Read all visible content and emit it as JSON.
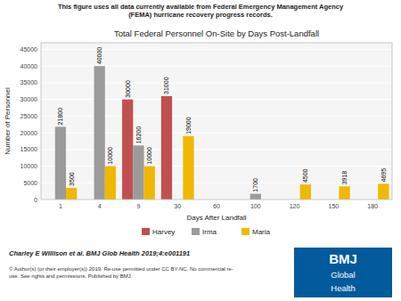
{
  "chart_data": {
    "type": "bar",
    "title": "Total Federal Personnel On-Site by Days Post-Landfall",
    "subtitle": "This figure uses all data currently available from Federal Emergency Management Agency\n(FEMA) hurricane recovery progress records.",
    "x_label": "Days After Landfall",
    "y_label": "Number of Personnel",
    "categories": [
      "1",
      "4",
      "9",
      "30",
      "60",
      "100",
      "120",
      "150",
      "180"
    ],
    "series": [
      {
        "name": "Harvey",
        "color": "#C0504D",
        "values": [
          0,
          0,
          30000,
          31000,
          0,
          0,
          0,
          0,
          0
        ]
      },
      {
        "name": "Irma",
        "color": "#9B9B9B",
        "values": [
          21800,
          40000,
          16200,
          0,
          0,
          1700,
          0,
          0,
          0
        ]
      },
      {
        "name": "Maria",
        "color": "#F0B800",
        "values": [
          3500,
          10000,
          10000,
          19000,
          0,
          0,
          4500,
          3918,
          4695
        ]
      }
    ],
    "ylim": [
      0,
      47000
    ],
    "yticks": [
      0,
      5000,
      10000,
      15000,
      20000,
      25000,
      30000,
      35000,
      40000,
      45000
    ],
    "grid": true,
    "legend": "bottom",
    "data_labels": true,
    "annotations": [
      "Charley E Willison et al. BMJ Glob Health 2019;4:e001191",
      "© Author(s) (or their employer(s)) 2019. Re-use permitted under CC BY-NC. No commercial re-\nuse. See rights and permissions. Published by BMJ.",
      "BMJ",
      "Global",
      "Health"
    ]
  }
}
